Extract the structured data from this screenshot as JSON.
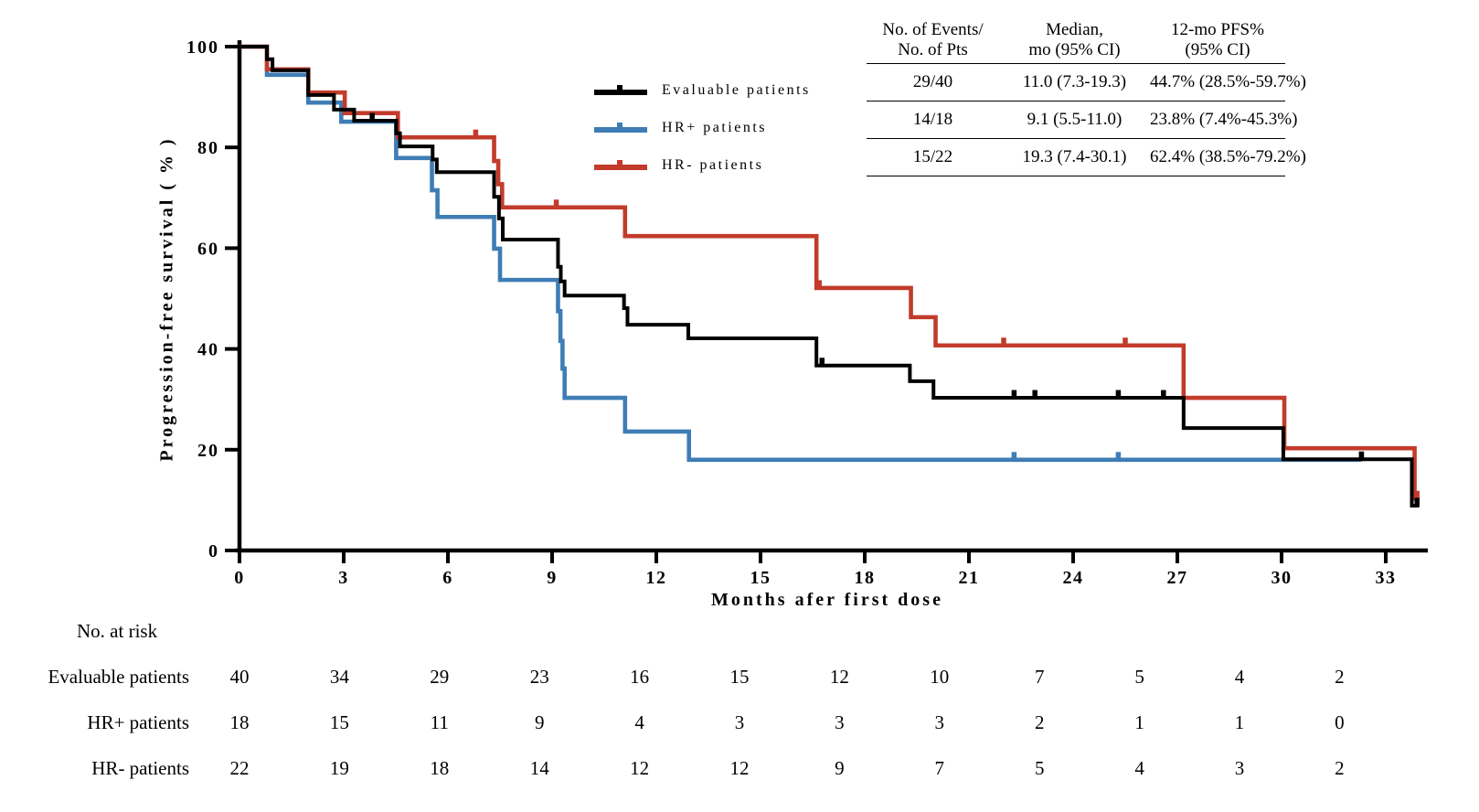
{
  "chart_data": {
    "type": "line",
    "step_type": "kaplan-meier",
    "title": "",
    "xlabel": "Months afer first dose",
    "ylabel": "Progression-free survival ( % )",
    "xlim": [
      0,
      34.5
    ],
    "ylim": [
      0,
      100
    ],
    "x_ticks": [
      0,
      3,
      6,
      9,
      12,
      15,
      18,
      21,
      24,
      27,
      30,
      33
    ],
    "y_ticks": [
      0,
      20,
      40,
      60,
      80,
      100
    ],
    "grid": false,
    "legend_position": "upper-center-left-of-table",
    "series": [
      {
        "name": "Evaluable patients",
        "color": "#000000",
        "end_month": 33.95,
        "steps": [
          [
            0,
            100
          ],
          [
            0.79,
            97.5
          ],
          [
            0.95,
            95.3
          ],
          [
            1.98,
            90.4
          ],
          [
            2.72,
            87.5
          ],
          [
            3.3,
            85.3
          ],
          [
            4.51,
            82.8
          ],
          [
            4.62,
            80.2
          ],
          [
            5.56,
            77.6
          ],
          [
            5.68,
            75.1
          ],
          [
            7.33,
            70.2
          ],
          [
            7.47,
            65.9
          ],
          [
            7.58,
            61.7
          ],
          [
            9.17,
            56.3
          ],
          [
            9.25,
            53.4
          ],
          [
            9.36,
            50.6
          ],
          [
            11.07,
            48.1
          ],
          [
            11.17,
            44.8
          ],
          [
            12.92,
            42.1
          ],
          [
            16.61,
            36.7
          ],
          [
            19.3,
            33.6
          ],
          [
            19.98,
            30.3
          ],
          [
            27.18,
            24.3
          ],
          [
            30.05,
            18.1
          ],
          [
            33.75,
            8.9
          ]
        ],
        "censor_marks": [
          [
            3.82,
            85.3
          ],
          [
            16.77,
            36.7
          ],
          [
            22.3,
            30.3
          ],
          [
            22.9,
            30.3
          ],
          [
            25.3,
            30.3
          ],
          [
            26.6,
            30.3
          ],
          [
            32.3,
            18.1
          ],
          [
            33.9,
            8.9
          ]
        ]
      },
      {
        "name": "HR+ patients",
        "color": "#3E7DB5",
        "end_month": 32.3,
        "steps": [
          [
            0,
            100
          ],
          [
            0.79,
            94.4
          ],
          [
            1.98,
            88.9
          ],
          [
            2.93,
            85.1
          ],
          [
            4.51,
            77.9
          ],
          [
            5.54,
            71.5
          ],
          [
            5.7,
            66.2
          ],
          [
            7.33,
            59.9
          ],
          [
            7.5,
            53.7
          ],
          [
            9.17,
            47.5
          ],
          [
            9.24,
            41.6
          ],
          [
            9.3,
            36.1
          ],
          [
            9.36,
            30.3
          ],
          [
            11.1,
            23.6
          ],
          [
            12.94,
            18.0
          ]
        ],
        "censor_marks": [
          [
            22.3,
            18.0
          ],
          [
            25.3,
            18.0
          ],
          [
            32.3,
            18.0
          ]
        ]
      },
      {
        "name": "HR- patients",
        "color": "#C23B2B",
        "end_month": 33.95,
        "steps": [
          [
            0,
            100
          ],
          [
            0.79,
            95.5
          ],
          [
            1.98,
            90.9
          ],
          [
            3.03,
            86.8
          ],
          [
            4.56,
            82.0
          ],
          [
            7.33,
            77.3
          ],
          [
            7.45,
            72.7
          ],
          [
            7.56,
            68.1
          ],
          [
            11.1,
            62.4
          ],
          [
            16.61,
            52.1
          ],
          [
            19.33,
            46.3
          ],
          [
            20.04,
            40.7
          ],
          [
            27.18,
            30.3
          ],
          [
            30.08,
            20.3
          ],
          [
            33.83,
            10.3
          ]
        ],
        "censor_marks": [
          [
            6.8,
            82.0
          ],
          [
            9.12,
            68.1
          ],
          [
            16.69,
            52.1
          ],
          [
            22.0,
            40.7
          ],
          [
            25.5,
            40.7
          ],
          [
            33.9,
            10.3
          ]
        ]
      }
    ]
  },
  "stats_table": {
    "headers": [
      {
        "line1": "No. of Events/",
        "line2": "No. of Pts"
      },
      {
        "line1": "Median,",
        "line2": "mo (95% CI)"
      },
      {
        "line1": "12-mo PFS%",
        "line2": "(95% CI)"
      }
    ],
    "rows": [
      [
        "29/40",
        "11.0 (7.3-19.3)",
        "44.7% (28.5%-59.7%)"
      ],
      [
        "14/18",
        "9.1 (5.5-11.0)",
        "23.8% (7.4%-45.3%)"
      ],
      [
        "15/22",
        "19.3 (7.4-30.1)",
        "62.4% (38.5%-79.2%)"
      ]
    ]
  },
  "at_risk": {
    "title": "No. at risk",
    "rows": [
      {
        "label": "Evaluable patients",
        "counts": [
          40,
          34,
          29,
          23,
          16,
          15,
          12,
          10,
          7,
          5,
          4,
          2
        ]
      },
      {
        "label": "HR+ patients",
        "counts": [
          18,
          15,
          11,
          9,
          4,
          3,
          3,
          3,
          2,
          1,
          1,
          0
        ]
      },
      {
        "label": "HR- patients",
        "counts": [
          22,
          19,
          18,
          14,
          12,
          12,
          9,
          7,
          5,
          4,
          3,
          2
        ]
      }
    ]
  }
}
